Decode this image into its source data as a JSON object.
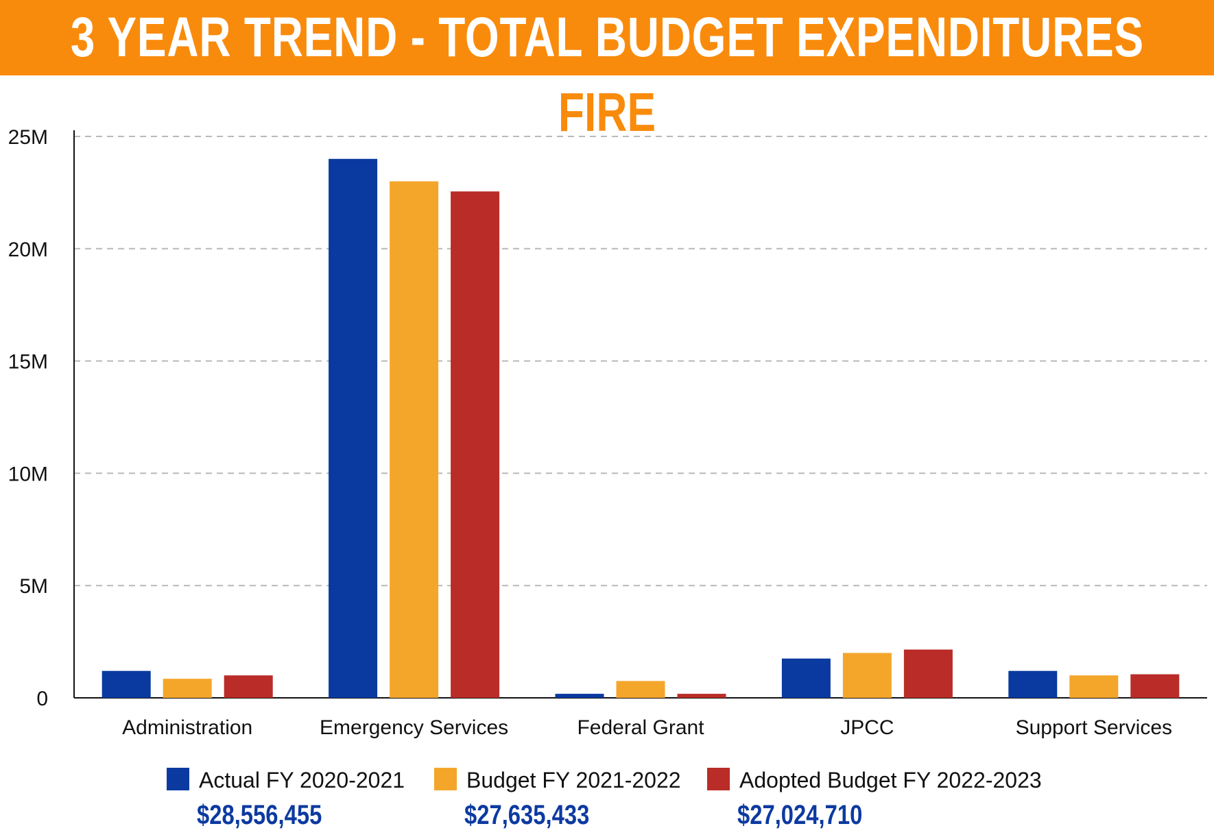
{
  "header": {
    "title": "3 YEAR TREND - TOTAL BUDGET EXPENDITURES",
    "subtitle": "FIRE"
  },
  "colors": {
    "banner": "#f98b0c",
    "actual": "#0a3aa0",
    "budget": "#f4a62a",
    "adopted": "#ba2c27",
    "totals": "#0d3aa0"
  },
  "chart_data": {
    "type": "bar",
    "title": "3 YEAR TREND - TOTAL BUDGET EXPENDITURES",
    "subtitle": "FIRE",
    "xlabel": "",
    "ylabel": "",
    "ylim": [
      0,
      25000000
    ],
    "yticks": [
      0,
      5000000,
      10000000,
      15000000,
      20000000,
      25000000
    ],
    "ytick_labels": [
      "0",
      "5M",
      "10M",
      "15M",
      "20M",
      "25M"
    ],
    "grid": true,
    "legend_position": "bottom",
    "categories": [
      "Administration",
      "Emergency Services",
      "Federal Grant",
      "JPCC",
      "Support Services"
    ],
    "series": [
      {
        "name": "Actual FY 2020-2021",
        "color": "#0a3aa0",
        "total": "$28,556,455",
        "values": [
          1200000,
          24000000,
          180000,
          1750000,
          1200000
        ]
      },
      {
        "name": "Budget FY 2021-2022",
        "color": "#f4a62a",
        "total": "$27,635,433",
        "values": [
          850000,
          23000000,
          750000,
          2000000,
          1000000
        ]
      },
      {
        "name": "Adopted Budget FY 2022-2023",
        "color": "#ba2c27",
        "total": "$27,024,710",
        "values": [
          1000000,
          22550000,
          180000,
          2150000,
          1050000
        ]
      }
    ]
  }
}
